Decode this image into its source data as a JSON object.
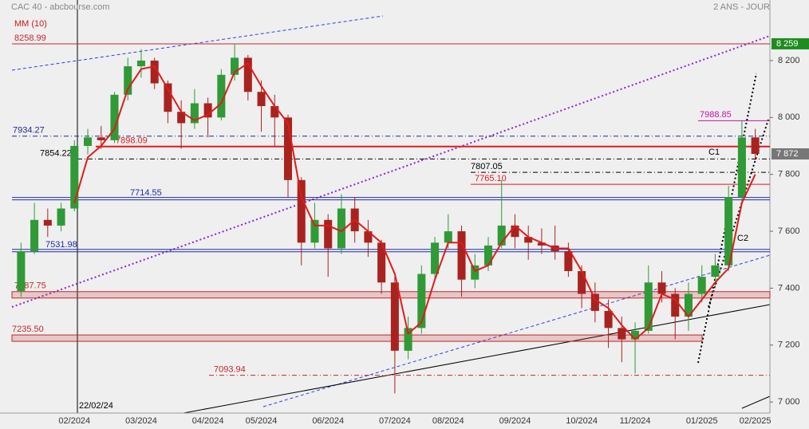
{
  "chart_data": {
    "type": "candlestick",
    "title": "CAC 40 - abcbourse.com",
    "period": "2 ANS - JOUR",
    "indicator": "MM (10)",
    "categories": [
      null,
      null,
      null,
      null,
      "02/2024",
      null,
      null,
      null,
      null,
      "03/2024",
      null,
      null,
      null,
      null,
      "04/2024",
      null,
      null,
      null,
      "05/2024",
      null,
      null,
      null,
      null,
      "06/2024",
      null,
      null,
      null,
      null,
      "07/2024",
      null,
      null,
      null,
      "08/2024",
      null,
      null,
      null,
      null,
      "09/2024",
      null,
      null,
      null,
      null,
      "10/2024",
      null,
      null,
      null,
      "11/2024",
      null,
      null,
      null,
      null,
      "01/2025",
      null,
      null,
      null,
      "02/2025"
    ],
    "open": [
      7390,
      7530,
      7640,
      7620,
      7680,
      7900,
      7930,
      7920,
      8080,
      8180,
      8200,
      8120,
      8020,
      7980,
      8050,
      8000,
      8150,
      8210,
      8090,
      8040,
      8000,
      7780,
      7560,
      7640,
      7540,
      7680,
      7600,
      7560,
      7420,
      7180,
      7260,
      7450,
      7560,
      7600,
      7430,
      7480,
      7550,
      7620,
      7580,
      7560,
      7550,
      7530,
      7460,
      7380,
      7320,
      7260,
      7220,
      7250,
      7420,
      7380,
      7300,
      7380,
      7440,
      7480,
      7720,
      7930
    ],
    "high": [
      7560,
      7700,
      7680,
      7700,
      7920,
      7960,
      7970,
      8090,
      8210,
      8240,
      8210,
      8130,
      8060,
      8100,
      8070,
      8170,
      8260,
      8220,
      8130,
      8080,
      8010,
      7790,
      7700,
      7660,
      7730,
      7720,
      7640,
      7570,
      7440,
      7300,
      7480,
      7580,
      7660,
      7620,
      7520,
      7580,
      7780,
      7660,
      7620,
      7610,
      7620,
      7560,
      7480,
      7420,
      7360,
      7300,
      7280,
      7480,
      7460,
      7400,
      7420,
      7480,
      7520,
      7760,
      7990,
      7960
    ],
    "low": [
      7370,
      7520,
      7580,
      7600,
      7670,
      7870,
      7890,
      7910,
      8060,
      8140,
      8100,
      7980,
      7890,
      7960,
      7930,
      7990,
      8130,
      8060,
      7950,
      7900,
      7720,
      7480,
      7540,
      7440,
      7520,
      7560,
      7510,
      7380,
      7030,
      7150,
      7240,
      7430,
      7540,
      7370,
      7400,
      7460,
      7540,
      7540,
      7500,
      7520,
      7500,
      7440,
      7330,
      7280,
      7190,
      7140,
      7100,
      7240,
      7350,
      7220,
      7250,
      7350,
      7400,
      7460,
      7700,
      7850
    ],
    "close": [
      7530,
      7640,
      7620,
      7680,
      7900,
      7930,
      7920,
      8080,
      8180,
      8200,
      8120,
      8020,
      7980,
      8050,
      8000,
      8150,
      8210,
      8090,
      8040,
      8000,
      7780,
      7560,
      7640,
      7540,
      7680,
      7600,
      7560,
      7420,
      7180,
      7260,
      7450,
      7560,
      7600,
      7430,
      7480,
      7550,
      7620,
      7580,
      7560,
      7550,
      7530,
      7460,
      7380,
      7320,
      7260,
      7220,
      7250,
      7420,
      7380,
      7300,
      7380,
      7440,
      7480,
      7720,
      7930,
      7872
    ],
    "up_color": "#2f9a36",
    "down_color": "#a8231f",
    "ma": {
      "color": "#e01b1b",
      "values": [
        null,
        null,
        null,
        null,
        7700,
        7860,
        7900,
        7960,
        8100,
        8170,
        8180,
        8100,
        8020,
        7990,
        8010,
        8050,
        8160,
        8190,
        8110,
        8040,
        7980,
        7720,
        7620,
        7620,
        7600,
        7640,
        7600,
        7560,
        7450,
        7240,
        7280,
        7430,
        7560,
        7560,
        7460,
        7480,
        7560,
        7620,
        7580,
        7560,
        7540,
        7540,
        7460,
        7360,
        7330,
        7270,
        7220,
        7260,
        7380,
        7360,
        7300,
        7360,
        7420,
        7470,
        7700,
        7800
      ]
    },
    "ylim": [
      6961,
      8413
    ],
    "yticks": [
      {
        "value": 7000,
        "label": "7 000"
      },
      {
        "value": 7200,
        "label": "7 200"
      },
      {
        "value": 7400,
        "label": "7 400"
      },
      {
        "value": 7600,
        "label": "7 600"
      },
      {
        "value": 7800,
        "label": "7 800"
      },
      {
        "value": 8000,
        "label": "8 000"
      },
      {
        "value": 8200,
        "label": "8 200"
      }
    ],
    "price_flags": [
      {
        "value": 8259,
        "label": "8 259",
        "color": "#1e8c1e"
      },
      {
        "value": 7872,
        "label": "7 872",
        "color": "#777777"
      }
    ],
    "levels": [
      {
        "value": 8258.99,
        "color": "#c0272d",
        "style": "solid"
      },
      {
        "value": 7934.27,
        "color": "#1f2a8a",
        "style": "dashdot"
      },
      {
        "value": 7898.09,
        "color": "#e01b1b",
        "style": "thick"
      },
      {
        "value": 7854.22,
        "color": "#000000",
        "style": "dashdot"
      },
      {
        "value": 7807.05,
        "color": "#000000",
        "style": "dashdot"
      },
      {
        "value": 7765.1,
        "label": "7765.10",
        "color": "#e01b1b",
        "style": "solid"
      },
      {
        "value": 7714.55,
        "color": "#1f2aa8",
        "style": "double"
      },
      {
        "value": 7531.98,
        "color": "#1f2aa8",
        "style": "double"
      },
      {
        "value": 7387.75,
        "color": "#c0272d",
        "style": "band"
      },
      {
        "value": 7235.5,
        "label": "7235.50",
        "color": "#c0272d",
        "style": "band"
      },
      {
        "value": 7093.94,
        "color": "#c0272d",
        "style": "dashdot"
      },
      {
        "value": 7988.85,
        "color": "#c0189c",
        "style": "solid"
      }
    ],
    "annotations": [
      "C1",
      "C2",
      "22/02/24"
    ]
  }
}
